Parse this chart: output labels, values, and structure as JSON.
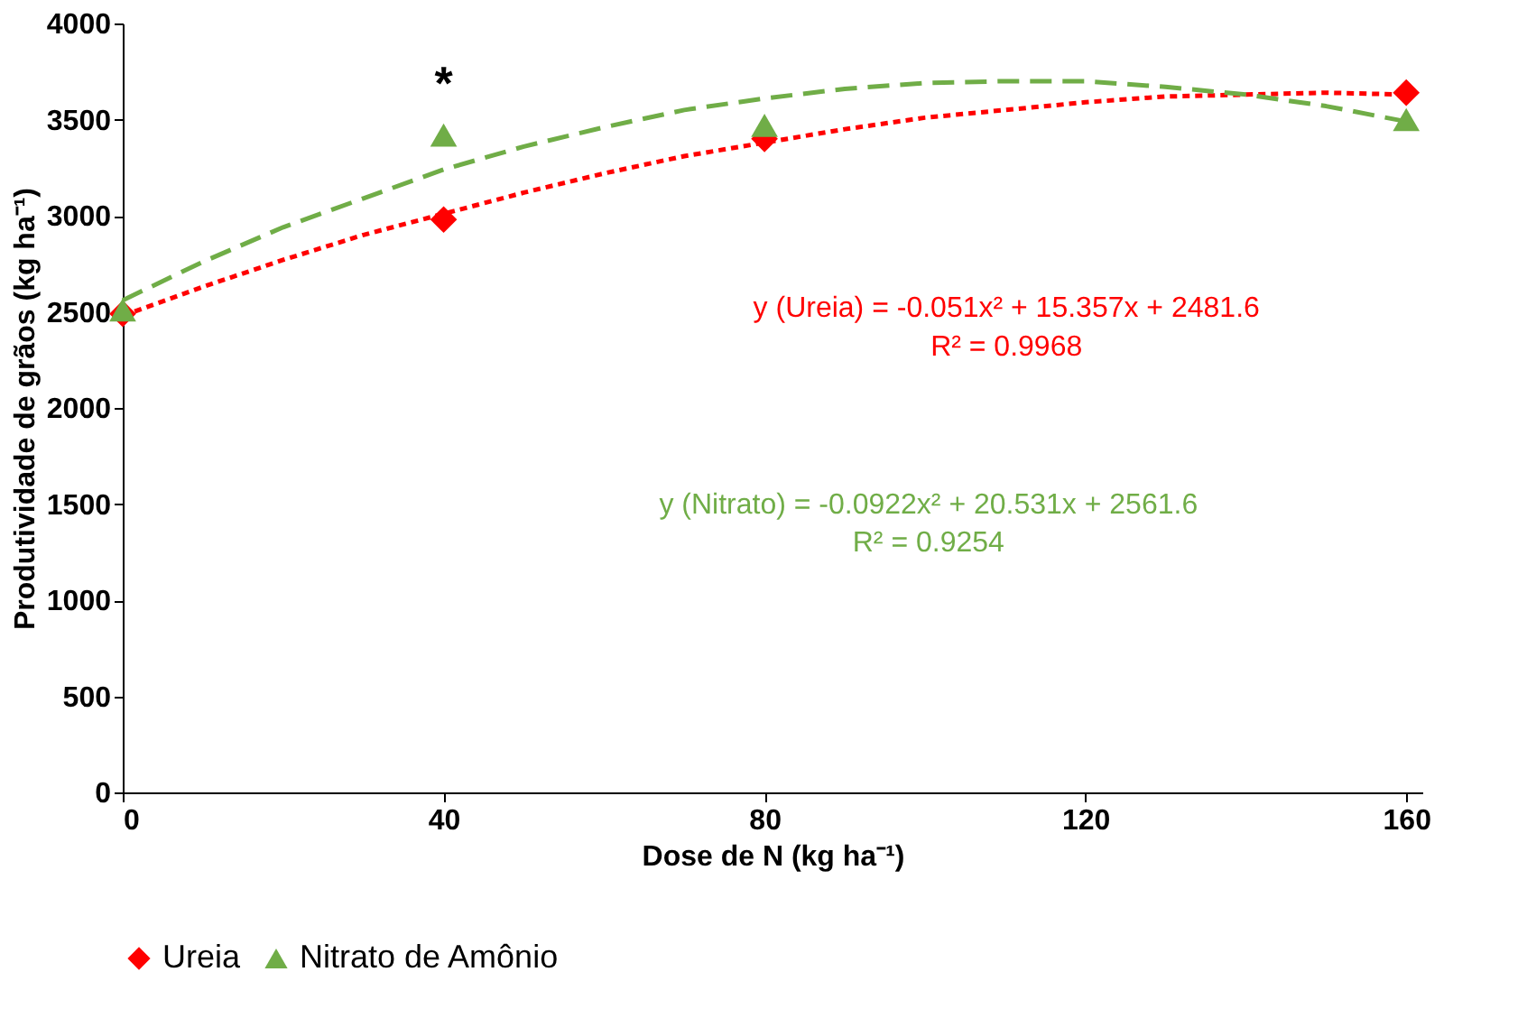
{
  "chart_data": {
    "type": "scatter",
    "xlabel": "Dose de N (kg ha⁻¹)",
    "ylabel": "Produtividade de grãos (kg ha⁻¹)",
    "xlim": [
      0,
      162
    ],
    "xticks": [
      0,
      40,
      80,
      120,
      160
    ],
    "ylim": [
      0,
      4000
    ],
    "yticks": [
      0,
      500,
      1000,
      1500,
      2000,
      2500,
      3000,
      3500,
      4000
    ],
    "grid": false,
    "legend": "bottom",
    "series": [
      {
        "name": "Ureia",
        "color": "#ff0000",
        "marker": "diamond",
        "x": [
          0,
          40,
          80,
          160
        ],
        "values": [
          2490,
          2980,
          3400,
          3640
        ]
      },
      {
        "name": "Nitrato de Amônio",
        "color": "#70ad47",
        "marker": "triangle",
        "x": [
          0,
          40,
          80,
          160
        ],
        "values": [
          2510,
          3420,
          3470,
          3500
        ]
      },
      {
        "type": "line",
        "color": "#ff0000",
        "line_style": "dotted",
        "x": [
          0,
          10,
          20,
          30,
          40,
          50,
          60,
          70,
          80,
          90,
          100,
          110,
          120,
          130,
          140,
          150,
          160
        ],
        "values": [
          2480,
          2630,
          2770,
          2900,
          3010,
          3120,
          3220,
          3310,
          3380,
          3450,
          3510,
          3550,
          3590,
          3620,
          3630,
          3640,
          3630
        ]
      },
      {
        "type": "line",
        "color": "#70ad47",
        "line_style": "dashed",
        "x": [
          0,
          10,
          20,
          30,
          40,
          50,
          60,
          70,
          80,
          90,
          100,
          110,
          120,
          130,
          140,
          150,
          160
        ],
        "values": [
          2560,
          2760,
          2940,
          3090,
          3240,
          3360,
          3460,
          3550,
          3610,
          3660,
          3690,
          3700,
          3700,
          3670,
          3630,
          3570,
          3490
        ]
      }
    ],
    "annotations": [
      "*",
      "y (Ureia) = -0.051x² + 15.357x + 2481.6",
      "R² = 0.9968",
      "y  (Nitrato) = -0.0922x² + 20.531x + 2561.6",
      "R² = 0.9254"
    ]
  }
}
